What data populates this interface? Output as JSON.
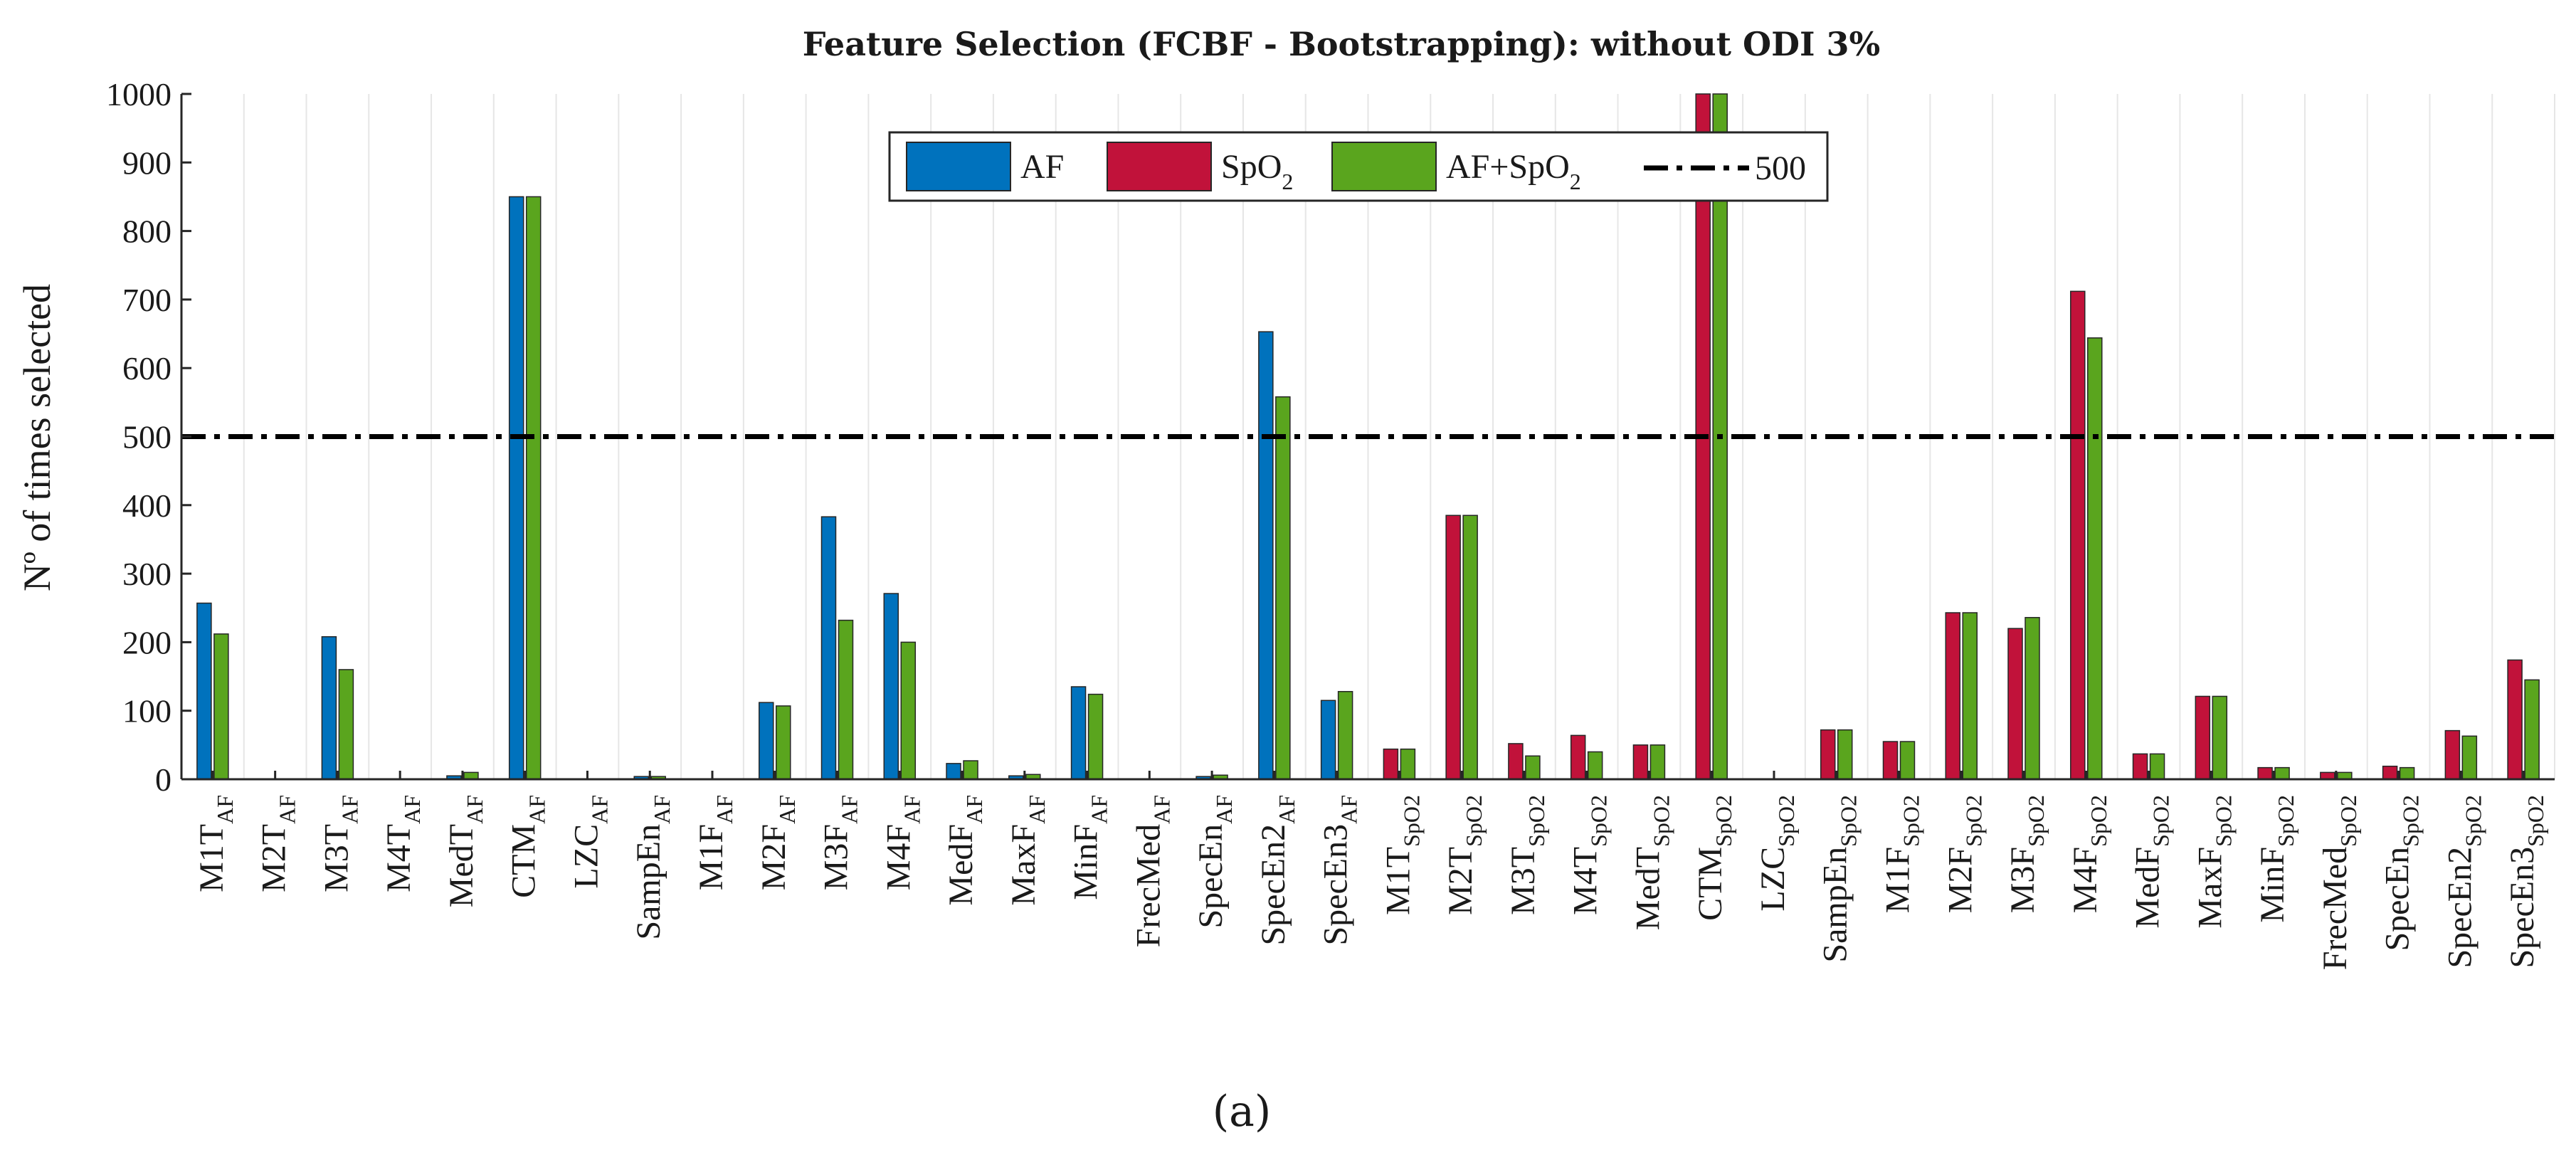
{
  "chart_data": {
    "type": "bar",
    "title": "Feature Selection (FCBF - Bootstrapping): without ODI 3%",
    "xlabel": "",
    "ylabel": "Nº of times selected",
    "ylim": [
      0,
      1000
    ],
    "yticks": [
      "0",
      "100",
      "200",
      "300",
      "400",
      "500",
      "600",
      "700",
      "800",
      "900",
      "1000"
    ],
    "grid": "vertical",
    "legend_position": "top-center",
    "categories": [
      {
        "base": "M1T",
        "sub": "AF"
      },
      {
        "base": "M2T",
        "sub": "AF"
      },
      {
        "base": "M3T",
        "sub": "AF"
      },
      {
        "base": "M4T",
        "sub": "AF"
      },
      {
        "base": "MedT",
        "sub": "AF"
      },
      {
        "base": "CTM",
        "sub": "AF"
      },
      {
        "base": "LZC",
        "sub": "AF"
      },
      {
        "base": "SampEn",
        "sub": "AF"
      },
      {
        "base": "M1F",
        "sub": "AF"
      },
      {
        "base": "M2F",
        "sub": "AF"
      },
      {
        "base": "M3F",
        "sub": "AF"
      },
      {
        "base": "M4F",
        "sub": "AF"
      },
      {
        "base": "MedF",
        "sub": "AF"
      },
      {
        "base": "MaxF",
        "sub": "AF"
      },
      {
        "base": "MinF",
        "sub": "AF"
      },
      {
        "base": "FrecMed",
        "sub": "AF"
      },
      {
        "base": "SpecEn",
        "sub": "AF"
      },
      {
        "base": "SpecEn2",
        "sub": "AF"
      },
      {
        "base": "SpecEn3",
        "sub": "AF"
      },
      {
        "base": "M1T",
        "sub": "SpO2"
      },
      {
        "base": "M2T",
        "sub": "SpO2"
      },
      {
        "base": "M3T",
        "sub": "SpO2"
      },
      {
        "base": "M4T",
        "sub": "SpO2"
      },
      {
        "base": "MedT",
        "sub": "SpO2"
      },
      {
        "base": "CTM",
        "sub": "SpO2"
      },
      {
        "base": "LZC",
        "sub": "SpO2"
      },
      {
        "base": "SampEn",
        "sub": "SpO2"
      },
      {
        "base": "M1F",
        "sub": "SpO2"
      },
      {
        "base": "M2F",
        "sub": "SpO2"
      },
      {
        "base": "M3F",
        "sub": "SpO2"
      },
      {
        "base": "M4F",
        "sub": "SpO2"
      },
      {
        "base": "MedF",
        "sub": "SpO2"
      },
      {
        "base": "MaxF",
        "sub": "SpO2"
      },
      {
        "base": "MinF",
        "sub": "SpO2"
      },
      {
        "base": "FrecMed",
        "sub": "SpO2"
      },
      {
        "base": "SpecEn",
        "sub": "SpO2"
      },
      {
        "base": "SpecEn2",
        "sub": "SpO2"
      },
      {
        "base": "SpecEn3",
        "sub": "SpO2"
      }
    ],
    "series": [
      {
        "name": "AF",
        "color": "#0072bd",
        "slot": "first",
        "values": [
          257,
          0,
          208,
          0,
          5,
          850,
          0,
          4,
          0,
          112,
          383,
          271,
          23,
          5,
          135,
          0,
          4,
          653,
          115,
          null,
          null,
          null,
          null,
          null,
          null,
          null,
          null,
          null,
          null,
          null,
          null,
          null,
          null,
          null,
          null,
          null,
          null,
          null
        ]
      },
      {
        "name": "SpO",
        "name_sub": "2",
        "color": "#c1123a",
        "slot": "first",
        "values": [
          null,
          null,
          null,
          null,
          null,
          null,
          null,
          null,
          null,
          null,
          null,
          null,
          null,
          null,
          null,
          null,
          null,
          null,
          null,
          44,
          385,
          52,
          64,
          50,
          1000,
          0,
          72,
          55,
          243,
          220,
          712,
          37,
          121,
          17,
          10,
          19,
          71,
          174
        ]
      },
      {
        "name": "AF+SpO",
        "name_sub": "2",
        "color": "#5aa51e",
        "slot": "second",
        "values": [
          212,
          0,
          160,
          0,
          10,
          850,
          0,
          4,
          0,
          107,
          232,
          200,
          27,
          7,
          124,
          0,
          6,
          558,
          128,
          44,
          385,
          34,
          40,
          50,
          1000,
          0,
          72,
          55,
          243,
          236,
          644,
          37,
          121,
          17,
          10,
          17,
          63,
          145
        ]
      }
    ],
    "reference_line": {
      "label": "500",
      "value": 500,
      "color": "#000000",
      "style": "dash-dot"
    }
  },
  "caption": "(a)"
}
